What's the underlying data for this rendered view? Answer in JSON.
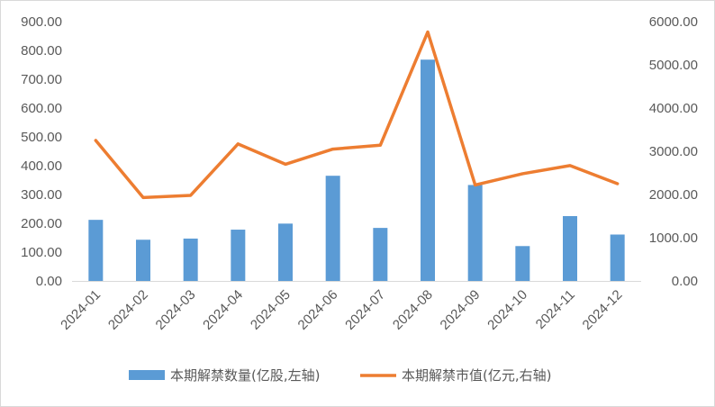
{
  "chart_data": {
    "type": "bar+line",
    "categories": [
      "2024-01",
      "2024-02",
      "2024-03",
      "2024-04",
      "2024-05",
      "2024-06",
      "2024-07",
      "2024-08",
      "2024-09",
      "2024-10",
      "2024-11",
      "2024-12"
    ],
    "series": [
      {
        "name": "本期解禁数量(亿股,左轴)",
        "type": "bar",
        "axis": "left",
        "color": "#5b9bd5",
        "values": [
          212,
          143,
          147,
          178,
          199,
          365,
          184,
          768,
          333,
          121,
          225,
          161
        ]
      },
      {
        "name": "本期解禁市值(亿元,右轴)",
        "type": "line",
        "axis": "right",
        "color": "#ed7d31",
        "values": [
          3250,
          1930,
          1980,
          3170,
          2700,
          3050,
          3140,
          5760,
          2220,
          2480,
          2670,
          2250
        ]
      }
    ],
    "left_axis": {
      "ylim": [
        0,
        900
      ],
      "ticks": [
        "0.00",
        "100.00",
        "200.00",
        "300.00",
        "400.00",
        "500.00",
        "600.00",
        "700.00",
        "800.00",
        "900.00"
      ]
    },
    "right_axis": {
      "ylim": [
        0,
        6000
      ],
      "ticks": [
        "0.00",
        "1000.00",
        "2000.00",
        "3000.00",
        "4000.00",
        "5000.00",
        "6000.00"
      ]
    },
    "grid": false,
    "legend_position": "bottom"
  }
}
